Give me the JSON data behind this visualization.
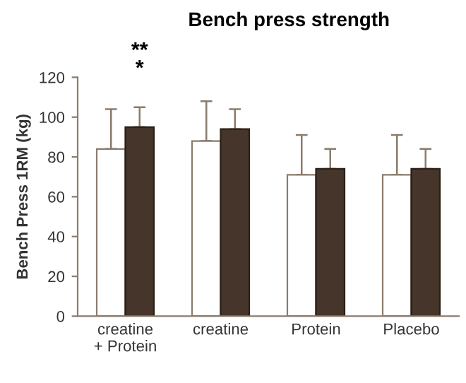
{
  "chart_data": {
    "type": "bar",
    "title": "Bench press strength",
    "ylabel": "Bench Press 1RM (kg)",
    "categories": [
      "creatine\n+ Protein",
      "creatine",
      "Protein",
      "Placebo"
    ],
    "series": [
      {
        "color": "#ffffff",
        "values": [
          84,
          88,
          71,
          71
        ],
        "errors": [
          [
            84,
            104
          ],
          [
            88,
            108
          ],
          [
            71,
            91
          ],
          [
            71,
            91
          ]
        ]
      },
      {
        "color": "#45352a",
        "values": [
          95,
          94,
          74,
          74
        ],
        "errors": [
          [
            95,
            105
          ],
          [
            94,
            104
          ],
          [
            74,
            84
          ],
          [
            74,
            84
          ]
        ]
      }
    ],
    "annotations": [
      "**",
      "*"
    ],
    "ylim": [
      0,
      120
    ],
    "yticks": [
      0,
      20,
      40,
      60,
      80,
      100,
      120
    ],
    "grid": false,
    "legend": false
  }
}
